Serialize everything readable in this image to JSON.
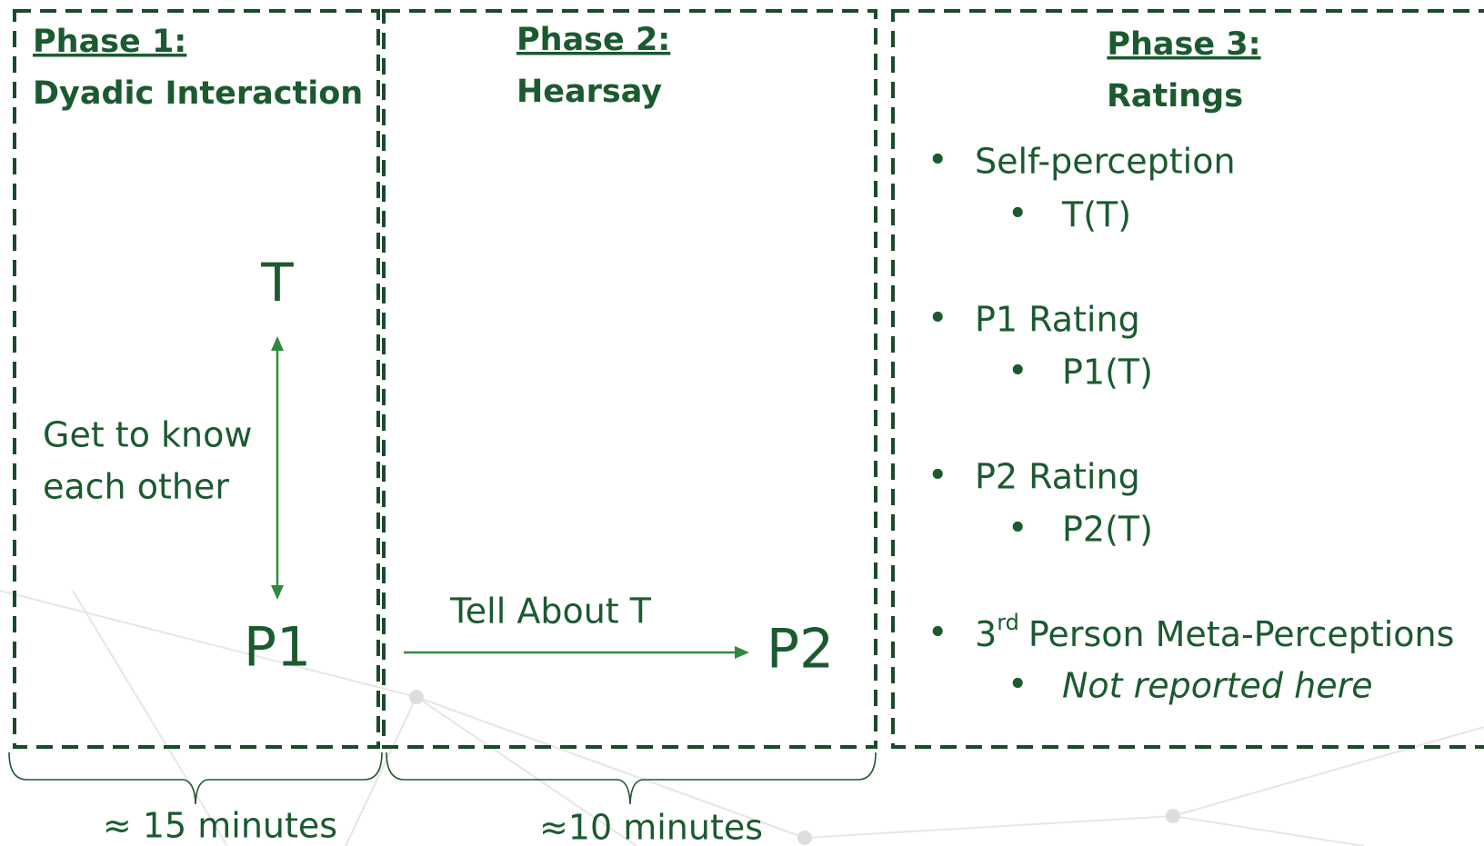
{
  "phases": [
    {
      "title": "Phase 1:",
      "subtitle": "Dyadic Interaction"
    },
    {
      "title": "Phase 2:",
      "subtitle": "Hearsay"
    },
    {
      "title": "Phase 3:",
      "subtitle": "Ratings"
    }
  ],
  "nodes": {
    "target": "T",
    "p1": "P1",
    "p2": "P2"
  },
  "edges": {
    "interaction": [
      "Get to know",
      "each other"
    ],
    "hearsay": "Tell About T"
  },
  "ratings": [
    {
      "label": "Self-perception",
      "sub": "T(T)"
    },
    {
      "label": "P1 Rating",
      "sub": "P1(T)"
    },
    {
      "label": "P2 Rating",
      "sub": "P2(T)"
    },
    {
      "number": "3",
      "superscript": "rd",
      "label": "Person Meta-Perceptions",
      "sub": "Not reported here"
    }
  ],
  "durations": [
    "≈ 15 minutes",
    "≈10 minutes"
  ]
}
